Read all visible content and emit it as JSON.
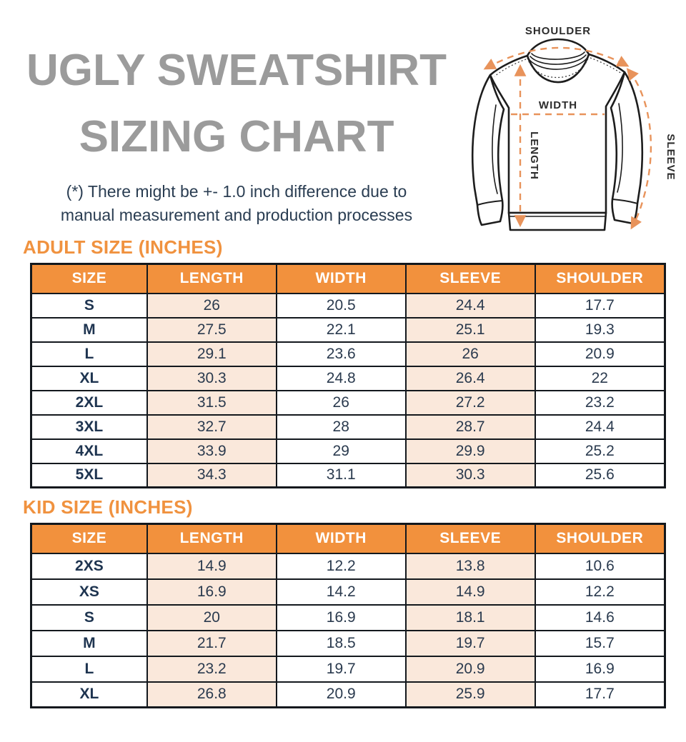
{
  "header": {
    "title_line1": "UGLY SWEATSHIRT",
    "title_line2": "SIZING CHART",
    "subtitle_line1": "(*) There might be +- 1.0 inch difference due to",
    "subtitle_line2": "manual measurement and production processes"
  },
  "diagram": {
    "shoulder_label": "SHOULDER",
    "width_label": "WIDTH",
    "length_label": "LENGTH",
    "sleeve_label": "SLEEVE"
  },
  "tables": {
    "columns": [
      "SIZE",
      "LENGTH",
      "WIDTH",
      "SLEEVE",
      "SHOULDER"
    ],
    "adult": {
      "heading": "ADULT SIZE (INCHES)",
      "rows": [
        [
          "S",
          "26",
          "20.5",
          "24.4",
          "17.7"
        ],
        [
          "M",
          "27.5",
          "22.1",
          "25.1",
          "19.3"
        ],
        [
          "L",
          "29.1",
          "23.6",
          "26",
          "20.9"
        ],
        [
          "XL",
          "30.3",
          "24.8",
          "26.4",
          "22"
        ],
        [
          "2XL",
          "31.5",
          "26",
          "27.2",
          "23.2"
        ],
        [
          "3XL",
          "32.7",
          "28",
          "28.7",
          "24.4"
        ],
        [
          "4XL",
          "33.9",
          "29",
          "29.9",
          "25.2"
        ],
        [
          "5XL",
          "34.3",
          "31.1",
          "30.3",
          "25.6"
        ]
      ]
    },
    "kid": {
      "heading": "KID SIZE (INCHES)",
      "rows": [
        [
          "2XS",
          "14.9",
          "12.2",
          "13.8",
          "10.6"
        ],
        [
          "XS",
          "16.9",
          "14.2",
          "14.9",
          "12.2"
        ],
        [
          "S",
          "20",
          "16.9",
          "18.1",
          "14.6"
        ],
        [
          "M",
          "21.7",
          "18.5",
          "19.7",
          "15.7"
        ],
        [
          "L",
          "23.2",
          "19.7",
          "20.9",
          "16.9"
        ],
        [
          "XL",
          "26.8",
          "20.9",
          "25.9",
          "17.7"
        ]
      ]
    }
  },
  "colors": {
    "header_orange": "#F2913D",
    "section_orange": "#F0923F",
    "cream_cell": "#FAE8DB",
    "title_gray": "#9B9B9B",
    "navy_text": "#2A3D52",
    "border_dark": "#13181d",
    "arrow_orange": "#E8935B"
  }
}
